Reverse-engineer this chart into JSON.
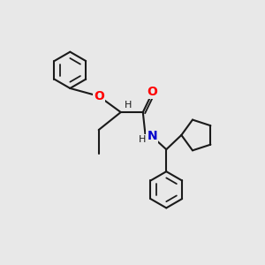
{
  "bg_color": "#e8e8e8",
  "bond_color": "#1a1a1a",
  "bond_width": 1.5,
  "atom_colors": {
    "O": "#ff0000",
    "N": "#0000cc",
    "C": "#1a1a1a",
    "H": "#1a1a1a"
  },
  "font_size": 9
}
